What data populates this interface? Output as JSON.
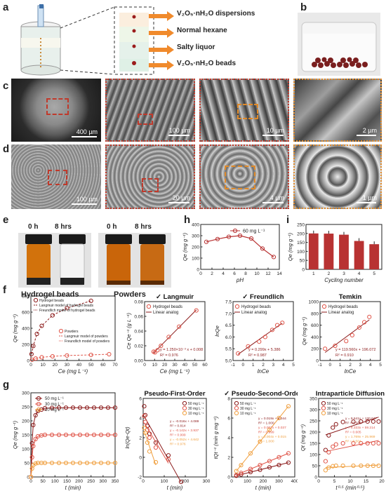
{
  "panels": {
    "a": "a",
    "b": "b",
    "c": "c",
    "d": "d",
    "e": "e",
    "f": "f",
    "g": "g",
    "h": "h",
    "i": "i"
  },
  "panel_a": {
    "arrow_labels": [
      "V₂O₅·nH₂O dispersions",
      "Normal hexane",
      "Salty liquor",
      "V₂O₅·nH₂O beads"
    ]
  },
  "panel_c": {
    "scale_bars": [
      "400 µm",
      "100 µm",
      "10 µm",
      "2 µm"
    ]
  },
  "panel_d": {
    "scale_bars": [
      "100 µm",
      "20 µm",
      "4 µm",
      "1 µm"
    ]
  },
  "panel_e": {
    "times": [
      "0 h",
      "8 hrs",
      "0 h",
      "8 hrs"
    ],
    "captions": [
      "Hydrogel beads",
      "Powders"
    ]
  },
  "colors": {
    "dark_red": "#8b1a1a",
    "red": "#e0564a",
    "orange": "#f0a040",
    "bar": "#b83232"
  },
  "chart_data": [
    {
      "id": "h",
      "type": "line",
      "x": [
        1,
        3,
        5,
        7,
        9,
        11,
        13
      ],
      "series": [
        {
          "name": "60 mg L⁻¹",
          "values": [
            245,
            270,
            290,
            300,
            275,
            185,
            110
          ]
        }
      ],
      "xlabel": "pH",
      "ylabel": "Qe (mg g⁻¹)",
      "xlim": [
        0,
        14
      ],
      "ylim": [
        0,
        400
      ],
      "xticks": [
        "0",
        "2",
        "4",
        "6",
        "8",
        "10",
        "12",
        "14"
      ],
      "yticks": [
        "0",
        "100",
        "200",
        "300",
        "400"
      ]
    },
    {
      "id": "i",
      "type": "bar",
      "categories": [
        "1",
        "2",
        "3",
        "4",
        "5"
      ],
      "values": [
        200,
        199,
        193,
        158,
        140
      ],
      "xlabel": "Cycling number",
      "ylabel": "Qe (mg g⁻¹)",
      "ylim": [
        0,
        250
      ],
      "yticks": [
        "0",
        "50",
        "100",
        "150",
        "200",
        "250"
      ]
    },
    {
      "id": "f1",
      "type": "scatter",
      "series": [
        {
          "name": "Hydrogel beads",
          "x": [
            0.5,
            2,
            5,
            9,
            18,
            30,
            50
          ],
          "y": [
            80,
            180,
            330,
            430,
            560,
            650,
            740
          ]
        },
        {
          "name": "Powders",
          "x": [
            1,
            4,
            9,
            18,
            30,
            50,
            65
          ],
          "y": [
            10,
            25,
            40,
            52,
            62,
            70,
            78
          ]
        }
      ],
      "legend": [
        "Hydrogel beads",
        "Langmuir model of hydrogel beads",
        "Freundlich model of hydrogel beads",
        "Powders",
        "Langmuir model of powders",
        "Freundlich model of powders"
      ],
      "xlabel": "Ce (mg L⁻¹)",
      "ylabel": "Qe (mg g⁻¹)",
      "xlim": [
        0,
        70
      ],
      "ylim": [
        0,
        800
      ],
      "xticks": [
        "0",
        "10",
        "20",
        "30",
        "40",
        "50",
        "60",
        "70"
      ],
      "yticks": [
        "0",
        "200",
        "400",
        "600",
        "800"
      ]
    },
    {
      "id": "f2",
      "type": "scatter",
      "title": "✓ Langmuir",
      "series": [
        {
          "name": "Hydrogel beads",
          "x": [
            0.5,
            2,
            5,
            9,
            18,
            30,
            50
          ],
          "y": [
            0.012,
            0.011,
            0.014,
            0.02,
            0.032,
            0.046,
            0.068
          ]
        }
      ],
      "legend": [
        "Hydrogel beads",
        "Linear analog"
      ],
      "equation": "y = 1.250×10⁻³ x + 0.008",
      "r2": "R² = 0.976",
      "xlabel": "Ce (mg L⁻¹)",
      "ylabel": "Ce Qe⁻¹ (g L⁻¹)",
      "xlim": [
        -10,
        60
      ],
      "ylim": [
        0,
        0.08
      ],
      "xticks": [
        "0",
        "10",
        "20",
        "30",
        "40",
        "50",
        "60"
      ],
      "yticks": [
        "0.00",
        "0.02",
        "0.04",
        "0.06",
        "0.08"
      ]
    },
    {
      "id": "f3",
      "type": "scatter",
      "title": "✓ Freundlich",
      "series": [
        {
          "name": "Hydrogel beads",
          "x": [
            -0.5,
            0.5,
            1.6,
            2.2,
            2.9,
            3.4,
            3.9
          ],
          "y": [
            5.3,
            5.6,
            5.8,
            6.0,
            6.3,
            6.5,
            6.6
          ]
        }
      ],
      "legend": [
        "Hydrogel beads",
        "Linear analog"
      ],
      "equation": "y = 0.299x + 5.386",
      "r2": "R² = 0.987",
      "xlabel": "lnCe",
      "ylabel": "lnQe",
      "xlim": [
        -1,
        5
      ],
      "ylim": [
        5.0,
        7.5
      ],
      "xticks": [
        "-1",
        "0",
        "1",
        "2",
        "3",
        "4",
        "5"
      ],
      "yticks": [
        "5.0",
        "5.5",
        "6.0",
        "6.5",
        "7.0",
        "7.5"
      ]
    },
    {
      "id": "f4",
      "type": "scatter",
      "title": "Temkin",
      "series": [
        {
          "name": "Hydrogel beads",
          "x": [
            -0.5,
            0.5,
            1.6,
            2.2,
            2.9,
            3.4,
            3.9
          ],
          "y": [
            200,
            250,
            330,
            430,
            560,
            650,
            740
          ]
        }
      ],
      "legend": [
        "Hydrogel beads",
        "Linear analog"
      ],
      "equation": "y = 119.560x + 196.072",
      "r2": "R² = 0.910",
      "xlabel": "lnCe",
      "ylabel": "Qe (mg g⁻¹)",
      "xlim": [
        -1,
        5
      ],
      "ylim": [
        0,
        1000
      ],
      "xticks": [
        "-1",
        "0",
        "1",
        "2",
        "3",
        "4",
        "5"
      ],
      "yticks": [
        "0",
        "200",
        "400",
        "600",
        "800",
        "1000"
      ]
    },
    {
      "id": "g1",
      "type": "line",
      "x": [
        0,
        5,
        10,
        20,
        30,
        45,
        60,
        90,
        120,
        150,
        180,
        210,
        240,
        270,
        300,
        330,
        360
      ],
      "series": [
        {
          "name": "50 mg L⁻¹",
          "values": [
            0,
            120,
            185,
            220,
            235,
            240,
            245,
            246,
            247,
            247,
            247,
            247,
            247,
            247,
            247,
            247,
            247
          ]
        },
        {
          "name": "30 mg L⁻¹",
          "values": [
            0,
            70,
            110,
            135,
            145,
            148,
            150,
            150,
            150,
            150,
            150,
            150,
            150,
            150,
            150,
            150,
            150
          ]
        },
        {
          "name": "10 mg L⁻¹",
          "values": [
            0,
            30,
            42,
            48,
            50,
            50,
            50,
            50,
            50,
            50,
            50,
            50,
            50,
            50,
            50,
            50,
            50
          ]
        }
      ],
      "xlabel": "t (min)",
      "ylabel": "Qe (mg g⁻¹)",
      "xlim": [
        0,
        360
      ],
      "ylim": [
        0,
        300
      ],
      "xticks": [
        "0",
        "50",
        "100",
        "150",
        "200",
        "250",
        "300",
        "350"
      ],
      "yticks": [
        "0",
        "50",
        "100",
        "150",
        "200",
        "250",
        "300"
      ]
    },
    {
      "id": "g2",
      "type": "scatter",
      "title": "Pseudo-First-Order",
      "series": [
        {
          "name": "50 mg L⁻¹",
          "x": [
            5,
            10,
            20,
            30,
            60,
            120,
            180
          ],
          "y": [
            5.2,
            4.3,
            3.2,
            2.4,
            1.5,
            0.2,
            -2.5
          ]
        },
        {
          "name": "30 mg L⁻¹",
          "x": [
            5,
            10,
            20,
            30,
            60,
            120
          ],
          "y": [
            4.2,
            3.6,
            2.8,
            2.0,
            1.0,
            -0.2
          ]
        },
        {
          "name": "10 mg L⁻¹",
          "x": [
            5,
            10,
            20,
            30,
            60
          ],
          "y": [
            3.0,
            2.5,
            1.5,
            0.6,
            -0.5
          ]
        }
      ],
      "equations": [
        "y = -0.016x + 4.089",
        "R² = 0.814",
        "y = -0.142x + 3.937",
        "R² = 0.999",
        "y = -0.052x + 4.642",
        "R² = 0.976"
      ],
      "xlabel": "t (min)",
      "ylabel": "ln(Qe-Qt)",
      "xlim": [
        0,
        300
      ],
      "ylim": [
        -2,
        6
      ],
      "xticks": [
        "0",
        "100",
        "200",
        "300"
      ],
      "yticks": [
        "-2",
        "0",
        "2",
        "4",
        "6"
      ]
    },
    {
      "id": "g3",
      "type": "scatter",
      "title": "✓ Pseudo-Second-Order",
      "series": [
        {
          "name": "50 mg L⁻¹",
          "x": [
            30,
            60,
            120,
            180,
            240,
            300,
            360
          ],
          "y": [
            0.12,
            0.25,
            0.5,
            0.73,
            0.98,
            1.22,
            1.46
          ]
        },
        {
          "name": "30 mg L⁻¹",
          "x": [
            30,
            60,
            120,
            180,
            240,
            300,
            360
          ],
          "y": [
            0.2,
            0.41,
            0.81,
            1.21,
            1.61,
            2.01,
            2.41
          ]
        },
        {
          "name": "10 mg L⁻¹",
          "x": [
            30,
            60,
            120,
            180,
            240,
            300,
            360
          ],
          "y": [
            0.6,
            1.2,
            2.4,
            3.6,
            4.8,
            6.0,
            7.2
          ]
        }
      ],
      "equations": [
        "y = 0.019x + 0.044",
        "R² = 1.000",
        "y = 0.007x + 0.037",
        "R² = 0.999",
        "y = 0.004x + 0.015",
        "R² = 1.000"
      ],
      "xlabel": "t (min)",
      "ylabel": "tQt⁻¹ (min g mg⁻¹)",
      "xlim": [
        0,
        400
      ],
      "ylim": [
        0,
        8
      ],
      "xticks": [
        "0",
        "100",
        "200",
        "300",
        "400"
      ],
      "yticks": [
        "0",
        "2",
        "4",
        "6",
        "8"
      ]
    },
    {
      "id": "g4",
      "type": "scatter",
      "title": "Intraparticle Diffusion",
      "series": [
        {
          "name": "50 mg L⁻¹",
          "x": [
            2.2,
            3.2,
            4.5,
            5.5,
            7.7,
            11,
            13.4,
            15.5,
            17.3,
            19
          ],
          "y": [
            120,
            185,
            220,
            235,
            245,
            246,
            247,
            247,
            247,
            247
          ]
        },
        {
          "name": "30 mg L⁻¹",
          "x": [
            2.2,
            3.2,
            4.5,
            5.5,
            7.7,
            11,
            13.4,
            15.5,
            17.3,
            19
          ],
          "y": [
            70,
            110,
            135,
            145,
            150,
            150,
            150,
            150,
            150,
            150
          ]
        },
        {
          "name": "10 mg L⁻¹",
          "x": [
            2.2,
            3.2,
            4.5,
            5.5,
            7.7,
            11,
            13.4,
            15.5,
            17.3,
            19
          ],
          "y": [
            30,
            42,
            48,
            50,
            50,
            50,
            50,
            50,
            50,
            50
          ]
        }
      ],
      "equations": [
        "y = 9.641x + 130.047",
        "R² = 0.585",
        "y = 6.333x + 59.214",
        "R² = 0.605",
        "y = 1.769x + 25.969",
        "R² = 0.504"
      ],
      "xlabel": "t⁰·⁵ (min⁰·⁵)",
      "ylabel": "Qt (mg g⁻¹)",
      "xlim": [
        0,
        20
      ],
      "ylim": [
        0,
        350
      ],
      "xticks": [
        "0",
        "5",
        "10",
        "15",
        "20"
      ],
      "yticks": [
        "0",
        "50",
        "100",
        "150",
        "200",
        "250",
        "300",
        "350"
      ]
    }
  ]
}
